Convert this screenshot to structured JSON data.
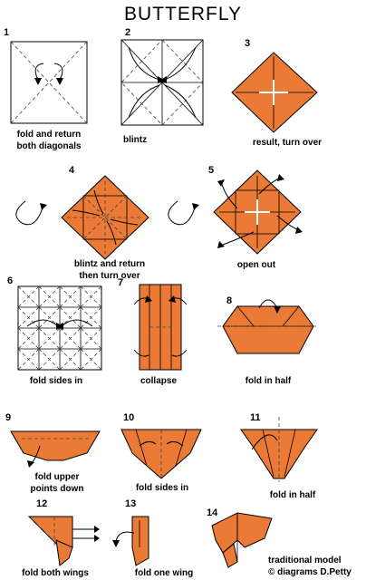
{
  "title": "BUTTERFLY",
  "colors": {
    "paper": "#ea7a36",
    "line": "#000000"
  },
  "steps": [
    {
      "num": "1",
      "caption_lines": [
        "fold and return",
        "both diagonals"
      ]
    },
    {
      "num": "2",
      "caption_lines": [
        "blintz"
      ]
    },
    {
      "num": "3",
      "caption_lines": [
        "result, turn over"
      ]
    },
    {
      "num": "4",
      "caption_lines": [
        "blintz and return",
        "then turn over"
      ]
    },
    {
      "num": "5",
      "caption_lines": [
        "open out"
      ]
    },
    {
      "num": "6",
      "caption_lines": [
        "fold sides in"
      ]
    },
    {
      "num": "7",
      "caption_lines": [
        "collapse"
      ]
    },
    {
      "num": "8",
      "caption_lines": [
        "fold in half"
      ]
    },
    {
      "num": "9",
      "caption_lines": [
        "fold upper",
        "points down"
      ]
    },
    {
      "num": "10",
      "caption_lines": [
        "fold sides in"
      ]
    },
    {
      "num": "11",
      "caption_lines": [
        "fold in half"
      ]
    },
    {
      "num": "12",
      "caption_lines": [
        "fold both wings"
      ]
    },
    {
      "num": "13",
      "caption_lines": [
        "fold one wing"
      ]
    },
    {
      "num": "14",
      "caption_lines": []
    }
  ],
  "credit_lines": [
    "traditional model",
    "© diagrams D.Petty"
  ]
}
